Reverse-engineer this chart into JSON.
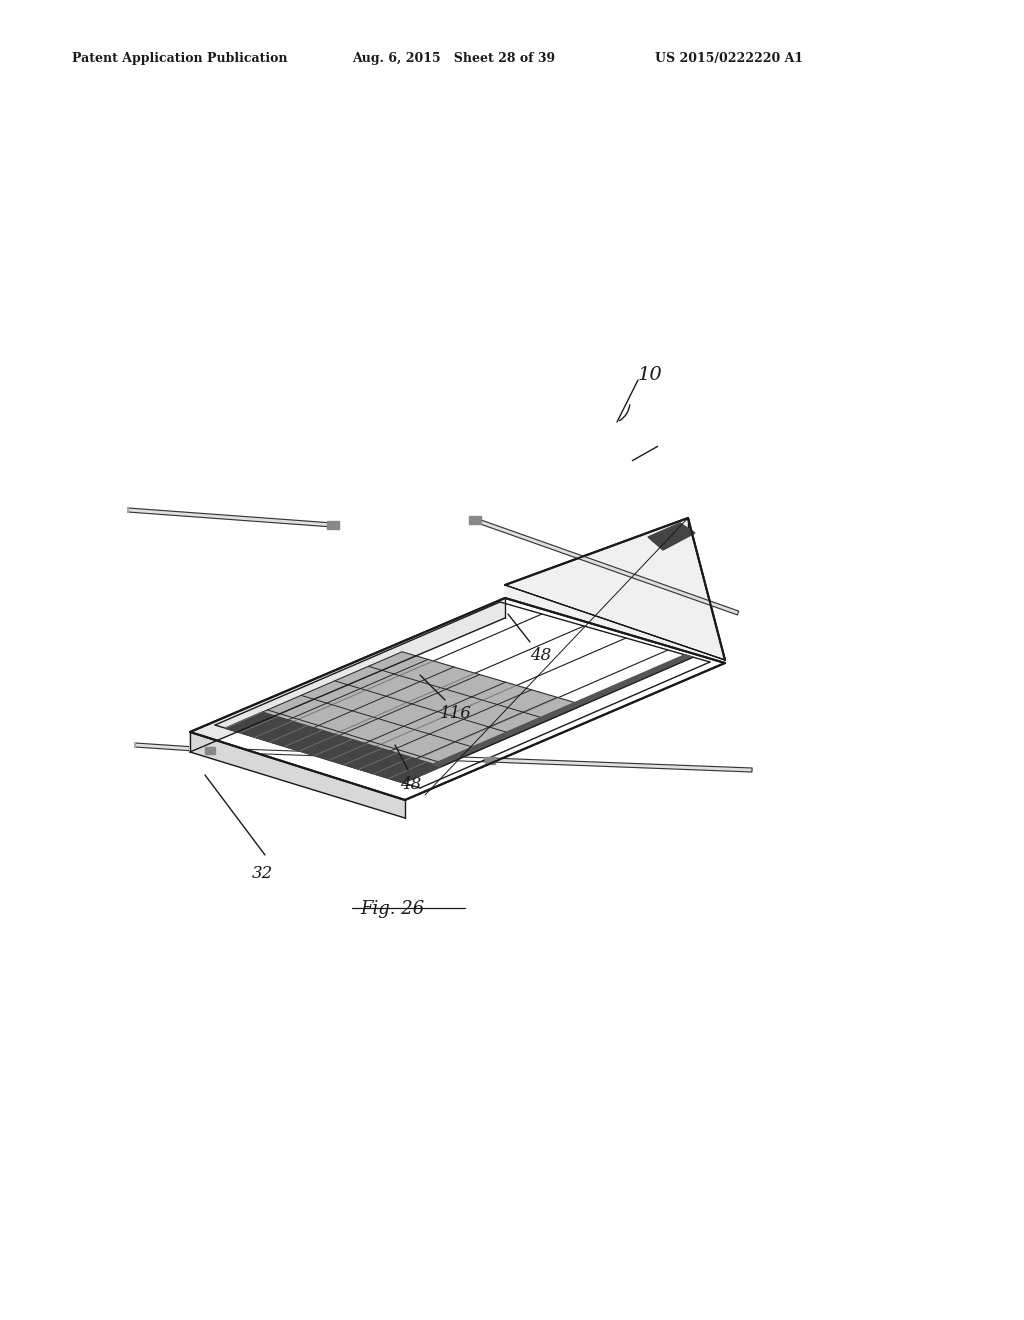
{
  "background_color": "#ffffff",
  "line_color": "#1a1a1a",
  "header_left": "Patent Application Publication",
  "header_mid": "Aug. 6, 2015   Sheet 28 of 39",
  "header_right": "US 2015/0222220 A1",
  "fig_label": "Fig. 26",
  "ref_10": "10",
  "ref_32": "32",
  "ref_48a": "48",
  "ref_48b": "48",
  "ref_116": "116",
  "header_fontsize": 9,
  "annotation_fontsize": 12,
  "fig_label_fontsize": 13
}
